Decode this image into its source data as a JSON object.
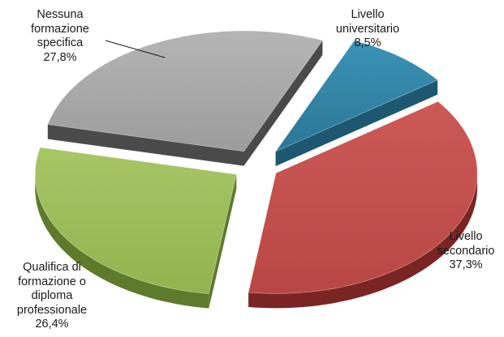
{
  "chart_data": {
    "type": "pie",
    "title": "",
    "slices": [
      {
        "name": "Livello universitario",
        "label_lines": [
          "Livello",
          "universitario"
        ],
        "value": 8.5,
        "value_label": "8,5%",
        "color": "#2e7fa0",
        "side_color": "#1d5870"
      },
      {
        "name": "Livello secondario",
        "label_lines": [
          "Livello",
          "secondario"
        ],
        "value": 37.3,
        "value_label": "37,3%",
        "color": "#c0504d",
        "side_color": "#7a2524"
      },
      {
        "name": "Qualifica di formazione o diploma professionale",
        "label_lines": [
          "Qualifica di",
          "formazione o",
          "diploma",
          "professionale"
        ],
        "value": 26.4,
        "value_label": "26,4%",
        "color": "#9bbb59",
        "side_color": "#5e7a2b"
      },
      {
        "name": "Nessuna formazione specifica",
        "label_lines": [
          "Nessuna",
          "formazione",
          "specifica"
        ],
        "value": 27.8,
        "value_label": "27,8%",
        "color": "#a6a6a6",
        "side_color": "#4a4a4a"
      }
    ],
    "legend": "none"
  }
}
